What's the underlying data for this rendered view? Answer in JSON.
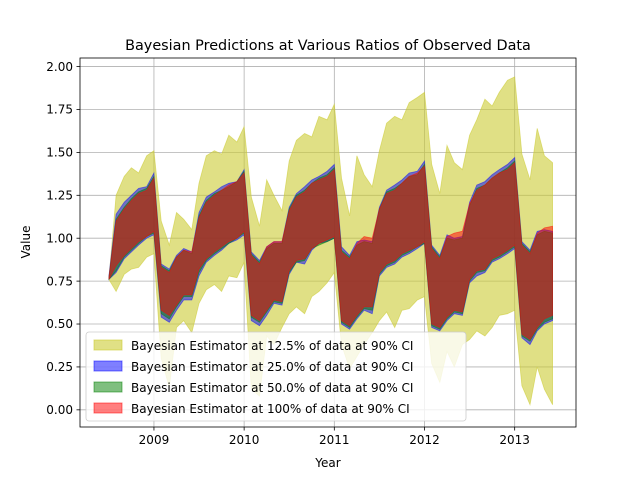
{
  "chart_data": {
    "type": "area",
    "title": "Bayesian Predictions at Various Ratios of Observed Data",
    "xlabel": "Year",
    "ylabel": "Value",
    "xlim": [
      2008.18,
      2013.68
    ],
    "ylim": [
      -0.1,
      2.05
    ],
    "x_ticks": [
      2009,
      2010,
      2011,
      2012,
      2013
    ],
    "x_tick_labels": [
      "2009",
      "2010",
      "2011",
      "2012",
      "2013"
    ],
    "y_ticks": [
      0.0,
      0.25,
      0.5,
      0.75,
      1.0,
      1.25,
      1.5,
      1.75,
      2.0
    ],
    "y_tick_labels": [
      "0.00",
      "0.25",
      "0.50",
      "0.75",
      "1.00",
      "1.25",
      "1.50",
      "1.75",
      "2.00"
    ],
    "grid": true,
    "legend_position": "lower-left",
    "x": [
      2008.5,
      2008.58,
      2008.67,
      2008.75,
      2008.83,
      2008.92,
      2009.0,
      2009.08,
      2009.17,
      2009.25,
      2009.33,
      2009.42,
      2009.5,
      2009.58,
      2009.67,
      2009.75,
      2009.83,
      2009.92,
      2010.0,
      2010.08,
      2010.17,
      2010.25,
      2010.33,
      2010.42,
      2010.5,
      2010.58,
      2010.67,
      2010.75,
      2010.83,
      2010.92,
      2011.0,
      2011.08,
      2011.17,
      2011.25,
      2011.33,
      2011.42,
      2011.5,
      2011.58,
      2011.67,
      2011.75,
      2011.83,
      2011.92,
      2012.0,
      2012.08,
      2012.17,
      2012.25,
      2012.33,
      2012.42,
      2012.5,
      2012.58,
      2012.67,
      2012.75,
      2012.83,
      2012.92,
      2013.0,
      2013.08,
      2013.17,
      2013.25,
      2013.33,
      2013.42
    ],
    "series": [
      {
        "name": "Bayesian Estimator at 12.5% of data at 90% CI",
        "color": "#cccc33",
        "opacity": 0.6,
        "lower": [
          0.76,
          0.69,
          0.79,
          0.82,
          0.83,
          0.89,
          0.91,
          0.3,
          0.13,
          0.48,
          0.52,
          0.45,
          0.62,
          0.7,
          0.73,
          0.69,
          0.78,
          0.77,
          0.86,
          0.12,
          0.08,
          0.43,
          0.38,
          0.48,
          0.56,
          0.6,
          0.56,
          0.66,
          0.69,
          0.74,
          0.8,
          0.38,
          0.24,
          0.31,
          0.38,
          0.45,
          0.52,
          0.57,
          0.48,
          0.58,
          0.59,
          0.64,
          0.66,
          0.27,
          0.16,
          0.34,
          0.25,
          0.38,
          0.41,
          0.46,
          0.43,
          0.48,
          0.55,
          0.56,
          0.58,
          0.14,
          0.03,
          0.25,
          0.12,
          0.03
        ],
        "upper": [
          0.76,
          1.25,
          1.36,
          1.41,
          1.38,
          1.48,
          1.51,
          1.1,
          0.96,
          1.15,
          1.11,
          1.05,
          1.32,
          1.48,
          1.51,
          1.49,
          1.6,
          1.56,
          1.65,
          1.24,
          1.07,
          1.34,
          1.25,
          1.16,
          1.45,
          1.57,
          1.61,
          1.59,
          1.71,
          1.69,
          1.78,
          1.35,
          1.13,
          1.48,
          1.37,
          1.3,
          1.51,
          1.67,
          1.71,
          1.69,
          1.79,
          1.82,
          1.85,
          1.43,
          1.26,
          1.54,
          1.44,
          1.4,
          1.6,
          1.69,
          1.81,
          1.77,
          1.85,
          1.92,
          1.94,
          1.49,
          1.34,
          1.64,
          1.48,
          1.44
        ]
      },
      {
        "name": "Bayesian Estimator at 25.0% of data at 90% CI",
        "color": "#0000ff",
        "opacity": 0.5,
        "lower": [
          0.76,
          0.8,
          0.88,
          0.92,
          0.96,
          1.0,
          1.02,
          0.54,
          0.51,
          0.58,
          0.64,
          0.64,
          0.78,
          0.86,
          0.9,
          0.93,
          0.97,
          0.99,
          1.02,
          0.52,
          0.49,
          0.55,
          0.62,
          0.61,
          0.79,
          0.86,
          0.85,
          0.93,
          0.97,
          0.98,
          1.0,
          0.5,
          0.47,
          0.53,
          0.58,
          0.56,
          0.78,
          0.83,
          0.85,
          0.89,
          0.91,
          0.94,
          0.97,
          0.48,
          0.46,
          0.52,
          0.56,
          0.55,
          0.74,
          0.78,
          0.8,
          0.86,
          0.88,
          0.91,
          0.94,
          0.42,
          0.38,
          0.46,
          0.5,
          0.52
        ],
        "upper": [
          0.78,
          1.14,
          1.21,
          1.25,
          1.29,
          1.3,
          1.38,
          0.85,
          0.82,
          0.9,
          0.94,
          0.92,
          1.15,
          1.24,
          1.27,
          1.3,
          1.32,
          1.33,
          1.4,
          0.92,
          0.87,
          0.95,
          0.98,
          0.98,
          1.18,
          1.26,
          1.3,
          1.34,
          1.36,
          1.39,
          1.43,
          0.95,
          0.9,
          0.98,
          0.99,
          0.98,
          1.18,
          1.28,
          1.31,
          1.34,
          1.38,
          1.39,
          1.45,
          0.96,
          0.9,
          1.02,
          1.0,
          1.01,
          1.21,
          1.31,
          1.33,
          1.37,
          1.4,
          1.43,
          1.47,
          0.98,
          0.93,
          1.04,
          1.05,
          1.04
        ]
      },
      {
        "name": "Bayesian Estimator at 50.0% of data at 90% CI",
        "color": "#008000",
        "opacity": 0.5,
        "lower": [
          0.76,
          0.81,
          0.89,
          0.93,
          0.97,
          1.01,
          1.03,
          0.56,
          0.53,
          0.6,
          0.66,
          0.66,
          0.8,
          0.87,
          0.91,
          0.94,
          0.97,
          1.0,
          1.03,
          0.54,
          0.51,
          0.57,
          0.63,
          0.62,
          0.8,
          0.86,
          0.87,
          0.94,
          0.96,
          0.98,
          1.0,
          0.51,
          0.48,
          0.54,
          0.59,
          0.58,
          0.79,
          0.84,
          0.86,
          0.9,
          0.92,
          0.95,
          0.97,
          0.49,
          0.47,
          0.53,
          0.57,
          0.56,
          0.75,
          0.8,
          0.81,
          0.87,
          0.89,
          0.92,
          0.95,
          0.43,
          0.4,
          0.47,
          0.51,
          0.53
        ],
        "upper": [
          0.77,
          1.11,
          1.18,
          1.23,
          1.27,
          1.29,
          1.36,
          0.84,
          0.81,
          0.89,
          0.93,
          0.91,
          1.13,
          1.22,
          1.26,
          1.28,
          1.3,
          1.33,
          1.39,
          0.91,
          0.86,
          0.94,
          0.97,
          0.97,
          1.17,
          1.25,
          1.28,
          1.32,
          1.35,
          1.37,
          1.41,
          0.93,
          0.89,
          0.96,
          0.98,
          0.97,
          1.17,
          1.27,
          1.29,
          1.32,
          1.36,
          1.37,
          1.43,
          0.95,
          0.89,
          1.0,
          0.99,
          1.0,
          1.19,
          1.29,
          1.31,
          1.35,
          1.38,
          1.41,
          1.45,
          0.97,
          0.92,
          1.02,
          1.04,
          1.03
        ]
      },
      {
        "name": "Bayesian Estimator at 100% of data at 90% CI",
        "color": "#ff0000",
        "opacity": 0.5,
        "lower": [
          0.76,
          0.84,
          0.9,
          0.94,
          0.98,
          1.01,
          1.04,
          0.58,
          0.55,
          0.61,
          0.67,
          0.67,
          0.82,
          0.88,
          0.92,
          0.95,
          0.98,
          1.0,
          1.04,
          0.55,
          0.52,
          0.58,
          0.64,
          0.63,
          0.81,
          0.87,
          0.88,
          0.94,
          0.97,
          0.99,
          1.01,
          0.52,
          0.49,
          0.55,
          0.6,
          0.6,
          0.8,
          0.85,
          0.87,
          0.91,
          0.93,
          0.95,
          0.98,
          0.5,
          0.48,
          0.54,
          0.58,
          0.57,
          0.76,
          0.81,
          0.82,
          0.88,
          0.9,
          0.93,
          0.96,
          0.44,
          0.41,
          0.48,
          0.53,
          0.55
        ],
        "upper": [
          0.77,
          1.1,
          1.17,
          1.22,
          1.26,
          1.28,
          1.35,
          0.83,
          0.8,
          0.89,
          0.93,
          0.92,
          1.12,
          1.21,
          1.25,
          1.28,
          1.31,
          1.33,
          1.38,
          0.9,
          0.85,
          0.95,
          0.98,
          0.98,
          1.16,
          1.24,
          1.27,
          1.32,
          1.34,
          1.36,
          1.4,
          0.92,
          0.88,
          0.97,
          1.01,
          1.0,
          1.17,
          1.26,
          1.28,
          1.32,
          1.36,
          1.38,
          1.42,
          0.94,
          0.88,
          1.01,
          1.03,
          1.04,
          1.2,
          1.28,
          1.31,
          1.35,
          1.38,
          1.4,
          1.44,
          0.96,
          0.91,
          1.03,
          1.06,
          1.07
        ]
      }
    ]
  }
}
